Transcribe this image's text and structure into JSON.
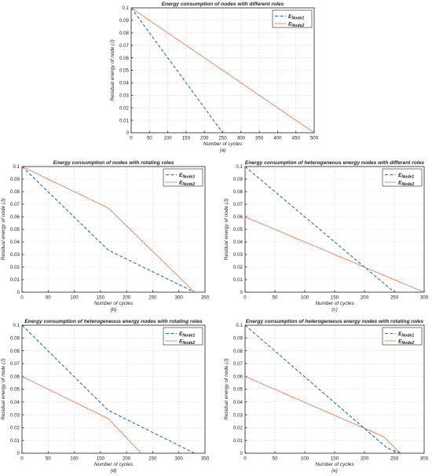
{
  "colors": {
    "node1": "#1f6fc5",
    "node2": "#d95319"
  },
  "chart_data": [
    {
      "type": "line",
      "panel": "(a)",
      "title": "Energy consumption of nodes with different roles",
      "xlabel": "Number of cycles",
      "ylabel": "Residual energy of node (J)",
      "xlim": [
        0,
        500
      ],
      "ylim": [
        0,
        0.1
      ],
      "xticks": [
        0,
        50,
        100,
        150,
        200,
        250,
        300,
        350,
        400,
        450,
        500
      ],
      "yticks": [
        0,
        0.01,
        0.02,
        0.03,
        0.04,
        0.05,
        0.06,
        0.07,
        0.08,
        0.09,
        0.1
      ],
      "grid": true,
      "legend": "top-right",
      "series": [
        {
          "name": "E",
          "sub": "Node1",
          "style": "dashed",
          "x": [
            0,
            250
          ],
          "y": [
            0.1,
            0
          ]
        },
        {
          "name": "E",
          "sub": "Node2",
          "style": "dotted",
          "x": [
            0,
            500
          ],
          "y": [
            0.1,
            0
          ]
        }
      ]
    },
    {
      "type": "line",
      "panel": "(b)",
      "title": "Energy consumption of nodes with rotating roles",
      "xlabel": "Number of cycles",
      "ylabel": "Residual energy of node (J)",
      "xlim": [
        0,
        350
      ],
      "ylim": [
        0,
        0.1
      ],
      "xticks": [
        0,
        50,
        100,
        150,
        200,
        250,
        300,
        350
      ],
      "yticks": [
        0,
        0.01,
        0.02,
        0.03,
        0.04,
        0.05,
        0.06,
        0.07,
        0.08,
        0.09,
        0.1
      ],
      "grid": true,
      "legend": "top-right",
      "series": [
        {
          "name": "E",
          "sub": "Node1",
          "style": "dashed",
          "x": [
            0,
            165,
            330
          ],
          "y": [
            0.1,
            0.0335,
            0
          ]
        },
        {
          "name": "E",
          "sub": "Node2",
          "style": "dotted",
          "x": [
            0,
            165,
            330
          ],
          "y": [
            0.1,
            0.067,
            0
          ]
        }
      ]
    },
    {
      "type": "line",
      "panel": "(c)",
      "title": "Energy consumption of heterogeneous energy nodes with different roles",
      "xlabel": "Number of cycles",
      "ylabel": "Residual energy of node (J)",
      "xlim": [
        0,
        300
      ],
      "ylim": [
        0,
        0.1
      ],
      "xticks": [
        0,
        50,
        100,
        150,
        200,
        250,
        300
      ],
      "yticks": [
        0,
        0.01,
        0.02,
        0.03,
        0.04,
        0.05,
        0.06,
        0.07,
        0.08,
        0.09,
        0.1
      ],
      "grid": true,
      "legend": "top-right",
      "series": [
        {
          "name": "E",
          "sub": "Node1",
          "style": "dashed",
          "x": [
            0,
            250
          ],
          "y": [
            0.1,
            0
          ]
        },
        {
          "name": "E",
          "sub": "Node2",
          "style": "dotted",
          "x": [
            0,
            300
          ],
          "y": [
            0.06,
            0
          ]
        }
      ]
    },
    {
      "type": "line",
      "panel": "(d)",
      "title": "Energy consumption of heterogeneous energy nodes with rotating roles",
      "xlabel": "Number of cycles",
      "ylabel": "Residual energy of node (J)",
      "xlim": [
        0,
        350
      ],
      "ylim": [
        0,
        0.1
      ],
      "xticks": [
        0,
        50,
        100,
        150,
        200,
        250,
        300,
        350
      ],
      "yticks": [
        0,
        0.01,
        0.02,
        0.03,
        0.04,
        0.05,
        0.06,
        0.07,
        0.08,
        0.09,
        0.1
      ],
      "grid": true,
      "legend": "top-right",
      "series": [
        {
          "name": "E",
          "sub": "Node1",
          "style": "dashed",
          "x": [
            0,
            165,
            330
          ],
          "y": [
            0.1,
            0.0335,
            0
          ]
        },
        {
          "name": "E",
          "sub": "Node2",
          "style": "dotted",
          "x": [
            0,
            165,
            228
          ],
          "y": [
            0.06,
            0.027,
            0
          ]
        }
      ]
    },
    {
      "type": "line",
      "panel": "(e)",
      "title": "Energy consumption of heterogeneous energy nodes with rotating roles",
      "xlabel": "Number of cycles",
      "ylabel": "Residual energy of node (J)",
      "xlim": [
        0,
        300
      ],
      "ylim": [
        0,
        0.1
      ],
      "xticks": [
        0,
        50,
        100,
        150,
        200,
        250,
        300
      ],
      "yticks": [
        0,
        0.01,
        0.02,
        0.03,
        0.04,
        0.05,
        0.06,
        0.07,
        0.08,
        0.09,
        0.1
      ],
      "grid": true,
      "legend": "top-right",
      "series": [
        {
          "name": "E",
          "sub": "Node1",
          "style": "dashed",
          "x": [
            0,
            238,
            262
          ],
          "y": [
            0.1,
            0.004,
            0
          ]
        },
        {
          "name": "E",
          "sub": "Node2",
          "style": "dotted",
          "x": [
            0,
            232,
            260
          ],
          "y": [
            0.06,
            0.013,
            0
          ]
        }
      ]
    }
  ]
}
